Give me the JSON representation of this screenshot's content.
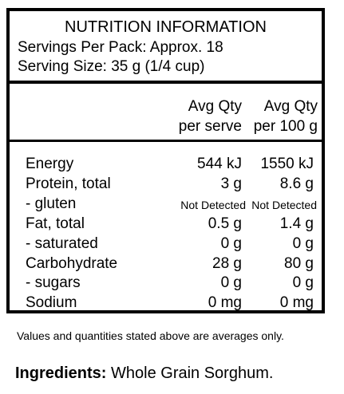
{
  "panel": {
    "title": "NUTRITION INFORMATION",
    "servings_per_pack": "Servings Per Pack: Approx. 18",
    "serving_size": "Serving Size: 35 g (1/4 cup)",
    "columns": {
      "per_serve_line1": "Avg Qty",
      "per_serve_line2": "per serve",
      "per_100g_line1": "Avg Qty",
      "per_100g_line2": "per 100 g"
    },
    "rows": [
      {
        "name": "Energy",
        "per_serve": "544 kJ",
        "per_100g": "1550 kJ"
      },
      {
        "name": "Protein, total",
        "per_serve": "3 g",
        "per_100g": "8.6 g"
      },
      {
        "name": " - gluten",
        "per_serve": "Not Detected",
        "per_100g": "Not Detected"
      },
      {
        "name": "Fat, total",
        "per_serve": "0.5 g",
        "per_100g": "1.4 g"
      },
      {
        "name": " - saturated",
        "per_serve": "0 g",
        "per_100g": "0 g"
      },
      {
        "name": "Carbohydrate",
        "per_serve": "28 g",
        "per_100g": "80 g"
      },
      {
        "name": " - sugars",
        "per_serve": "0 g",
        "per_100g": "0 g"
      },
      {
        "name": "Sodium",
        "per_serve": "0 mg",
        "per_100g": "0 mg"
      }
    ]
  },
  "footnote": "Values and quantities stated above are averages only.",
  "ingredients": {
    "label": "Ingredients:",
    "text": " Whole Grain Sorghum."
  }
}
